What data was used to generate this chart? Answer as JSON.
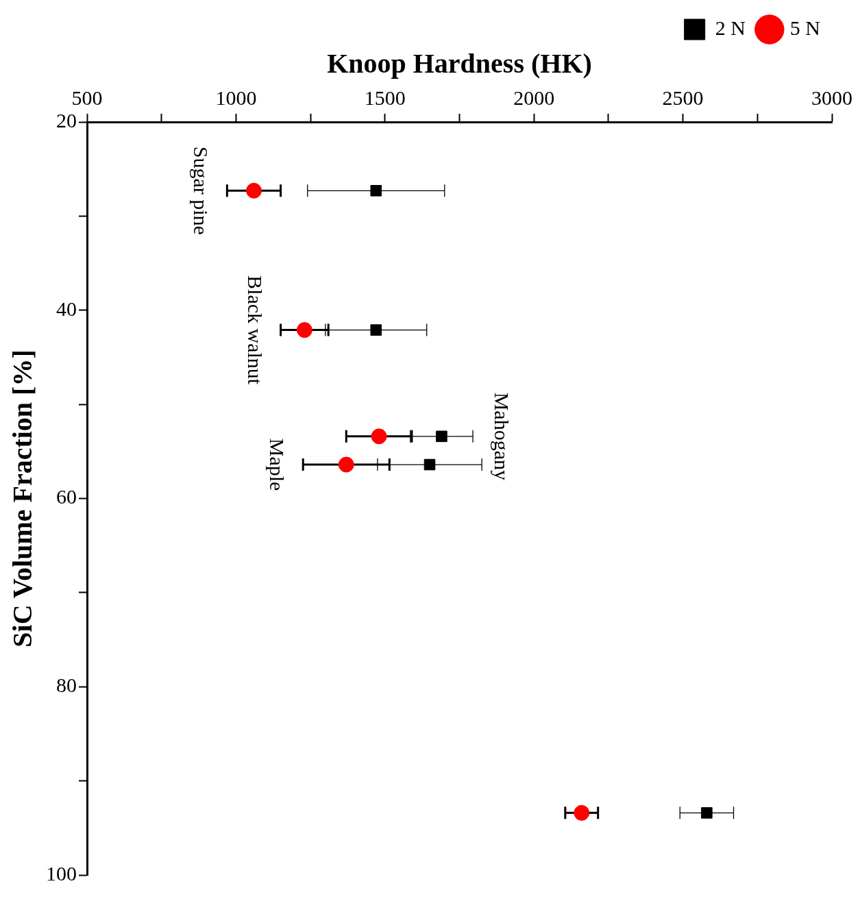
{
  "chart_data": {
    "type": "scatter",
    "xlabel": "Knoop Hardness (HK)",
    "ylabel": "SiC Volume Fraction [%]",
    "xlim": [
      500,
      3000
    ],
    "xticks": [
      500,
      {
        "value": 750,
        "label": null
      },
      1000,
      {
        "value": 1250,
        "label": null
      },
      1500,
      {
        "value": 1750,
        "label": null
      },
      2000,
      {
        "value": 2250,
        "label": null
      },
      2500,
      {
        "value": 2750,
        "label": null
      },
      3000
    ],
    "ylim": [
      100,
      20
    ],
    "yticks": [
      20,
      {
        "value": 30,
        "label": null
      },
      40,
      {
        "value": 50,
        "label": null
      },
      60,
      {
        "value": 70,
        "label": null
      },
      80,
      {
        "value": 90,
        "label": null
      },
      100
    ],
    "legend": "top right",
    "grid": false,
    "series": [
      {
        "name": "2 N",
        "color": "#000000",
        "marker": "square",
        "x": [
          1470,
          1470,
          1690,
          1650,
          2580
        ],
        "values": [
          27.3,
          42.1,
          53.4,
          56.4,
          93.4
        ],
        "xerrors": [
          230,
          170,
          105,
          175,
          90
        ]
      },
      {
        "name": "5 N",
        "color": "#ff0000",
        "marker": "circle",
        "x": [
          1060,
          1230,
          1480,
          1370,
          2160
        ],
        "values": [
          27.3,
          42.1,
          53.4,
          56.4,
          93.4
        ],
        "xerrors": [
          90,
          80,
          110,
          145,
          55
        ]
      }
    ],
    "annotations": [
      {
        "text": "Sugar pine",
        "x": 1060,
        "y": 27.3
      },
      {
        "text": "Black walnut",
        "x": 1230,
        "y": 42.1
      },
      {
        "text": "Mahogany",
        "x": 1690,
        "y": 53.4
      },
      {
        "text": "Maple",
        "x": 1370,
        "y": 56.4
      }
    ]
  }
}
